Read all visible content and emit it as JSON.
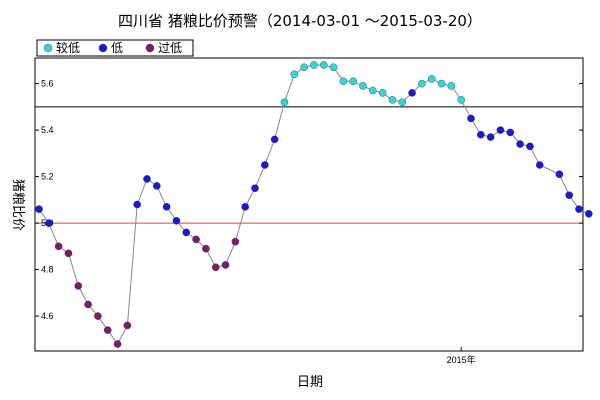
{
  "chart_data": {
    "type": "scatter",
    "title": "四川省 猪粮比价预警（2014-03-01 ～2015-03-20）",
    "xlabel": "日期",
    "ylabel": "猪粮比价",
    "x_tick_labels": [
      {
        "x": 43,
        "label": "2015年"
      }
    ],
    "y_ticks": [
      4.6,
      4.8,
      5.0,
      5.2,
      5.4,
      5.6
    ],
    "ylim": [
      4.45,
      5.71
    ],
    "xlim": [
      0,
      55
    ],
    "grid": false,
    "legend_position": "top-left",
    "threshold_lines": [
      {
        "value": 5.5,
        "color": "#000000"
      },
      {
        "value": 5.0,
        "color": "#e04040"
      }
    ],
    "series": [
      {
        "name": "较低",
        "color": "#33d6d6",
        "points": [
          [
            25,
            5.52
          ],
          [
            26,
            5.64
          ],
          [
            27,
            5.67
          ],
          [
            28,
            5.68
          ],
          [
            29,
            5.68
          ],
          [
            30,
            5.67
          ],
          [
            31,
            5.61
          ],
          [
            32,
            5.61
          ],
          [
            33,
            5.59
          ],
          [
            34,
            5.57
          ],
          [
            35,
            5.56
          ],
          [
            36,
            5.53
          ],
          [
            37,
            5.52
          ],
          [
            39,
            5.6
          ],
          [
            40,
            5.62
          ],
          [
            41,
            5.6
          ],
          [
            42,
            5.59
          ],
          [
            43,
            5.53
          ]
        ]
      },
      {
        "name": "低",
        "color": "#1a1ad6",
        "points": [
          [
            0,
            5.06
          ],
          [
            1,
            5.0
          ],
          [
            10,
            5.08
          ],
          [
            11,
            5.19
          ],
          [
            12,
            5.16
          ],
          [
            13,
            5.07
          ],
          [
            14,
            5.01
          ],
          [
            15,
            4.96
          ],
          [
            21,
            5.07
          ],
          [
            22,
            5.15
          ],
          [
            23,
            5.25
          ],
          [
            24,
            5.36
          ],
          [
            38,
            5.56
          ],
          [
            44,
            5.45
          ],
          [
            45,
            5.38
          ],
          [
            46,
            5.37
          ],
          [
            47,
            5.4
          ],
          [
            48,
            5.39
          ],
          [
            49,
            5.34
          ],
          [
            50,
            5.33
          ],
          [
            51,
            5.25
          ],
          [
            53,
            5.21
          ],
          [
            54,
            5.12
          ],
          [
            55,
            5.06
          ],
          [
            56,
            5.04
          ]
        ]
      },
      {
        "name": "过低",
        "color": "#7a1a70",
        "points": [
          [
            2,
            4.9
          ],
          [
            3,
            4.87
          ],
          [
            4,
            4.73
          ],
          [
            5,
            4.65
          ],
          [
            6,
            4.6
          ],
          [
            7,
            4.54
          ],
          [
            8,
            4.48
          ],
          [
            9,
            4.56
          ],
          [
            16,
            4.93
          ],
          [
            17,
            4.89
          ],
          [
            18,
            4.81
          ],
          [
            19,
            4.82
          ],
          [
            20,
            4.92
          ]
        ]
      }
    ]
  }
}
